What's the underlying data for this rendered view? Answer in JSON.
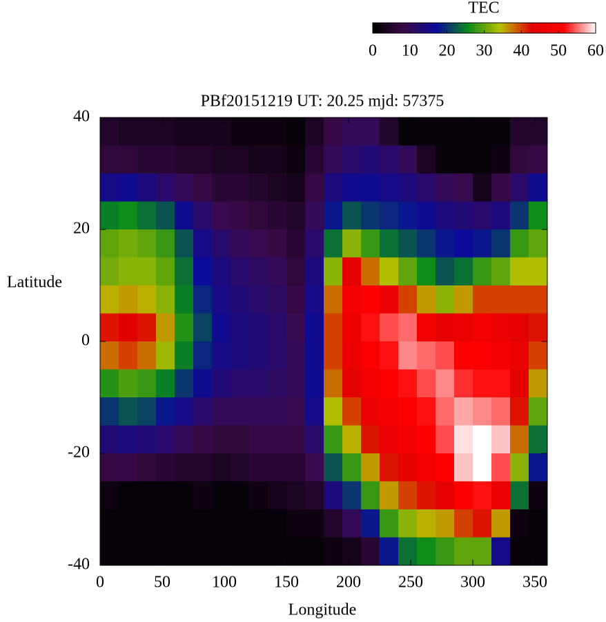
{
  "chart_data": {
    "type": "heatmap",
    "title": "PBf20151219  UT: 20.25  mjd: 57375",
    "x_label": "Longitude",
    "y_label": "Latitude",
    "colorbar_title": "TEC",
    "x": [
      7.5,
      22.5,
      37.5,
      52.5,
      67.5,
      82.5,
      97.5,
      112.5,
      127.5,
      142.5,
      157.5,
      172.5,
      187.5,
      202.5,
      217.5,
      232.5,
      247.5,
      262.5,
      277.5,
      292.5,
      307.5,
      322.5,
      337.5,
      352.5
    ],
    "y": [
      37.5,
      32.5,
      27.5,
      22.5,
      17.5,
      12.5,
      7.5,
      2.5,
      -2.5,
      -7.5,
      -12.5,
      -17.5,
      -22.5,
      -27.5,
      -32.5,
      -37.5
    ],
    "values": [
      [
        5,
        7,
        15,
        25,
        30,
        31,
        35,
        42,
        38,
        27,
        20,
        13,
        8,
        2,
        1,
        1
      ],
      [
        4,
        7,
        16,
        26,
        31,
        32,
        36,
        43,
        40,
        29,
        22,
        14,
        8,
        1,
        1,
        1
      ],
      [
        4,
        6,
        14,
        24,
        30,
        32,
        35,
        42,
        38,
        28,
        21,
        13,
        7,
        1,
        1,
        1
      ],
      [
        4,
        6,
        12,
        22,
        28,
        30,
        32,
        36,
        33,
        25,
        18,
        12,
        6,
        1,
        1,
        1
      ],
      [
        3,
        5,
        10,
        16,
        22,
        24,
        25,
        27,
        25,
        20,
        15,
        10,
        5,
        1,
        1,
        1
      ],
      [
        3,
        5,
        8,
        12,
        15,
        17,
        19,
        21,
        19,
        16,
        12,
        8,
        5,
        2,
        1,
        1
      ],
      [
        3,
        4,
        6,
        9,
        12,
        14,
        15,
        16,
        15,
        13,
        10,
        7,
        4,
        1,
        1,
        1
      ],
      [
        2,
        4,
        6,
        8,
        10,
        12,
        13,
        14,
        14,
        12,
        10,
        7,
        5,
        1,
        1,
        1
      ],
      [
        2,
        3,
        5,
        7,
        9,
        11,
        12,
        13,
        13,
        12,
        10,
        8,
        6,
        2,
        1,
        1
      ],
      [
        2,
        3,
        4,
        6,
        8,
        10,
        11,
        12,
        12,
        11,
        10,
        8,
        6,
        3,
        1,
        1
      ],
      [
        1,
        2,
        3,
        5,
        6,
        7,
        8,
        9,
        10,
        10,
        9,
        8,
        6,
        4,
        2,
        1
      ],
      [
        4,
        6,
        8,
        10,
        12,
        14,
        15,
        16,
        16,
        16,
        15,
        12,
        9,
        5,
        2,
        1
      ],
      [
        8,
        10,
        14,
        18,
        24,
        32,
        38,
        40,
        40,
        38,
        34,
        28,
        22,
        14,
        5,
        2
      ],
      [
        10,
        12,
        16,
        22,
        32,
        44,
        48,
        47,
        46,
        44,
        40,
        35,
        28,
        20,
        10,
        3
      ],
      [
        10,
        13,
        16,
        20,
        28,
        38,
        50,
        52,
        50,
        48,
        46,
        42,
        36,
        28,
        18,
        6
      ],
      [
        5,
        12,
        15,
        19,
        24,
        34,
        46,
        54,
        52,
        50,
        48,
        46,
        42,
        36,
        28,
        18
      ],
      [
        1,
        10,
        14,
        18,
        22,
        30,
        40,
        55,
        56,
        52,
        50,
        48,
        45,
        40,
        32,
        24
      ],
      [
        1,
        4,
        12,
        16,
        20,
        26,
        36,
        48,
        55,
        54,
        52,
        50,
        48,
        42,
        35,
        26
      ],
      [
        1,
        1,
        10,
        14,
        18,
        22,
        32,
        44,
        54,
        56,
        55,
        54,
        50,
        44,
        36,
        28
      ],
      [
        1,
        1,
        9,
        13,
        17,
        24,
        36,
        46,
        50,
        53,
        57,
        59,
        58,
        50,
        40,
        30
      ],
      [
        1,
        1,
        3,
        12,
        18,
        28,
        40,
        48,
        50,
        52,
        56,
        60,
        60,
        52,
        42,
        30
      ],
      [
        1,
        2,
        8,
        14,
        20,
        30,
        40,
        46,
        48,
        52,
        55,
        58,
        54,
        46,
        36,
        15
      ],
      [
        5,
        7,
        12,
        20,
        28,
        34,
        40,
        44,
        46,
        44,
        42,
        38,
        32,
        24,
        2,
        1
      ],
      [
        5,
        8,
        16,
        26,
        30,
        34,
        40,
        42,
        40,
        36,
        30,
        24,
        18,
        2,
        1,
        1
      ]
    ],
    "xlim": [
      0,
      360
    ],
    "xticks": [
      0,
      50,
      100,
      150,
      200,
      250,
      300,
      350
    ],
    "ylim": [
      -40,
      40
    ],
    "yticks": [
      -40,
      -20,
      0,
      20,
      40
    ],
    "zlim": [
      0,
      60
    ],
    "zticks": [
      0,
      10,
      20,
      30,
      40,
      50,
      60
    ],
    "colormap": [
      "#000000",
      "#3a0a4a",
      "#0a0a9a",
      "#0a8a1a",
      "#b8c000",
      "#e00000",
      "#ff0000",
      "#ffffff"
    ]
  }
}
